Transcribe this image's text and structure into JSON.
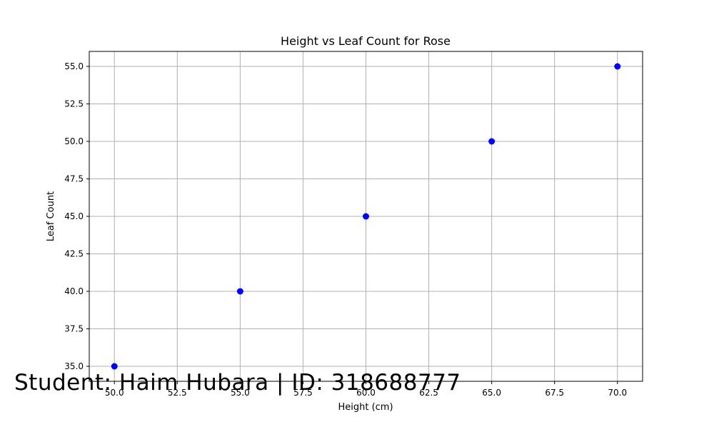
{
  "chart_data": {
    "type": "scatter",
    "title": "Height vs Leaf Count for Rose",
    "xlabel": "Height (cm)",
    "ylabel": "Leaf Count",
    "xlim": [
      49,
      71
    ],
    "ylim": [
      34,
      56
    ],
    "x_ticks": [
      50.0,
      52.5,
      55.0,
      57.5,
      60.0,
      62.5,
      65.0,
      67.5,
      70.0
    ],
    "y_ticks": [
      35.0,
      37.5,
      40.0,
      42.5,
      45.0,
      47.5,
      50.0,
      52.5,
      55.0
    ],
    "grid": true,
    "series": [
      {
        "color": "#0000ff",
        "points": [
          {
            "x": 50,
            "y": 35
          },
          {
            "x": 55,
            "y": 40
          },
          {
            "x": 60,
            "y": 45
          },
          {
            "x": 65,
            "y": 50
          },
          {
            "x": 70,
            "y": 55
          }
        ]
      }
    ]
  },
  "annotation": {
    "text": "Student: Haim Hubara | ID: 318688777"
  }
}
